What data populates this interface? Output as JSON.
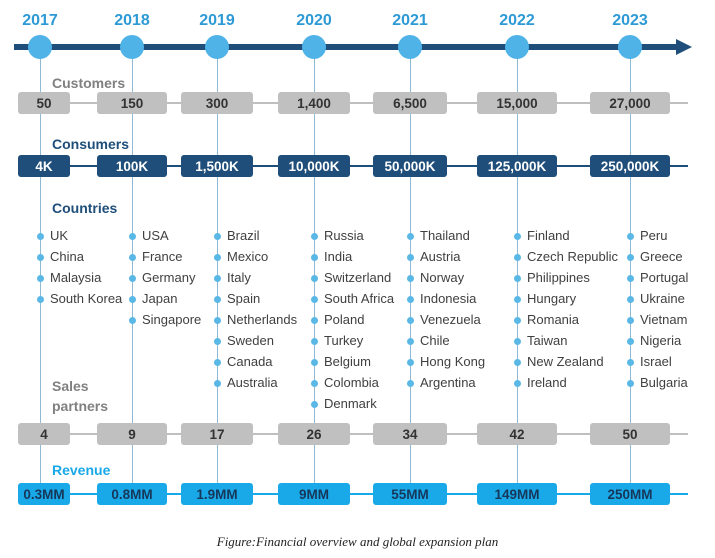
{
  "timeline": {
    "years": [
      "2017",
      "2018",
      "2019",
      "2020",
      "2021",
      "2022",
      "2023"
    ]
  },
  "sections": {
    "customers_title": "Customers",
    "consumers_title": "Consumers",
    "countries_title": "Countries",
    "partners_title_line1": "Sales",
    "partners_title_line2": "partners",
    "revenue_title": "Revenue"
  },
  "customers": [
    "50",
    "150",
    "300",
    "1,400",
    "6,500",
    "15,000",
    "27,000"
  ],
  "consumers": [
    "4K",
    "100K",
    "1,500K",
    "10,000K",
    "50,000K",
    "125,000K",
    "250,000K"
  ],
  "countries": [
    [
      "UK",
      "China",
      "Malaysia",
      "South Korea"
    ],
    [
      "USA",
      "France",
      "Germany",
      "Japan",
      "Singapore"
    ],
    [
      "Brazil",
      "Mexico",
      "Italy",
      "Spain",
      "Netherlands",
      "Sweden",
      "Canada",
      "Australia"
    ],
    [
      "Russia",
      "India",
      "Switzerland",
      "South Africa",
      "Poland",
      "Turkey",
      "Belgium",
      "Colombia",
      "Denmark"
    ],
    [
      "Thailand",
      "Austria",
      "Norway",
      "Indonesia",
      "Venezuela",
      "Chile",
      "Hong Kong",
      "Argentina"
    ],
    [
      "Finland",
      "Czech Republic",
      "Philippines",
      "Hungary",
      "Romania",
      "Taiwan",
      "New Zealand",
      "Ireland"
    ],
    [
      "Peru",
      "Greece",
      "Portugal",
      "Ukraine",
      "Vietnam",
      "Nigeria",
      "Israel",
      "Bulgaria"
    ]
  ],
  "sales_partners": [
    "4",
    "9",
    "17",
    "26",
    "34",
    "42",
    "50"
  ],
  "revenue": [
    "0.3MM",
    "0.8MM",
    "1.9MM",
    "9MM",
    "55MM",
    "149MM",
    "250MM"
  ],
  "caption": "Figure:Financial overview and global expansion plan",
  "colors": {
    "timeline": "#1e4e79",
    "dot": "#4fb3e8",
    "year": "#2d9ad6",
    "gray_pill": "#c0c0c0",
    "navy_pill": "#1e4e79",
    "cyan_pill": "#19a9e8",
    "customers_title": "#808080",
    "consumers_title": "#1e4e79",
    "countries_title": "#1e4e79",
    "partners_title": "#808080",
    "revenue_title": "#19a9e8"
  }
}
